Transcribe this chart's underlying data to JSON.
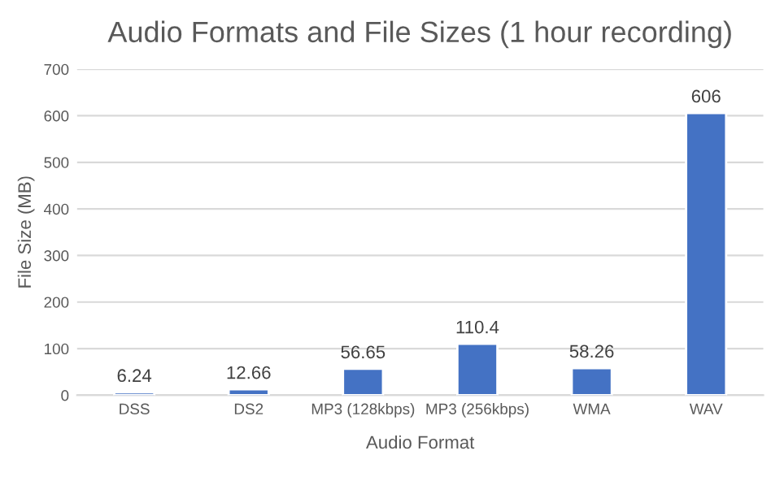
{
  "chart_data": {
    "type": "bar",
    "title": "Audio Formats and File Sizes (1 hour recording)",
    "xlabel": "Audio Format",
    "ylabel": "File Size (MB)",
    "categories": [
      "DSS",
      "DS2",
      "MP3 (128kbps)",
      "MP3 (256kbps)",
      "WMA",
      "WAV"
    ],
    "values": [
      6.24,
      12.66,
      56.65,
      110.4,
      58.26,
      606
    ],
    "color": "#4472c4",
    "ylim": [
      0,
      700
    ],
    "yticks": [
      0,
      100,
      200,
      300,
      400,
      500,
      600,
      700
    ],
    "grid": "y",
    "data_labels": true
  }
}
